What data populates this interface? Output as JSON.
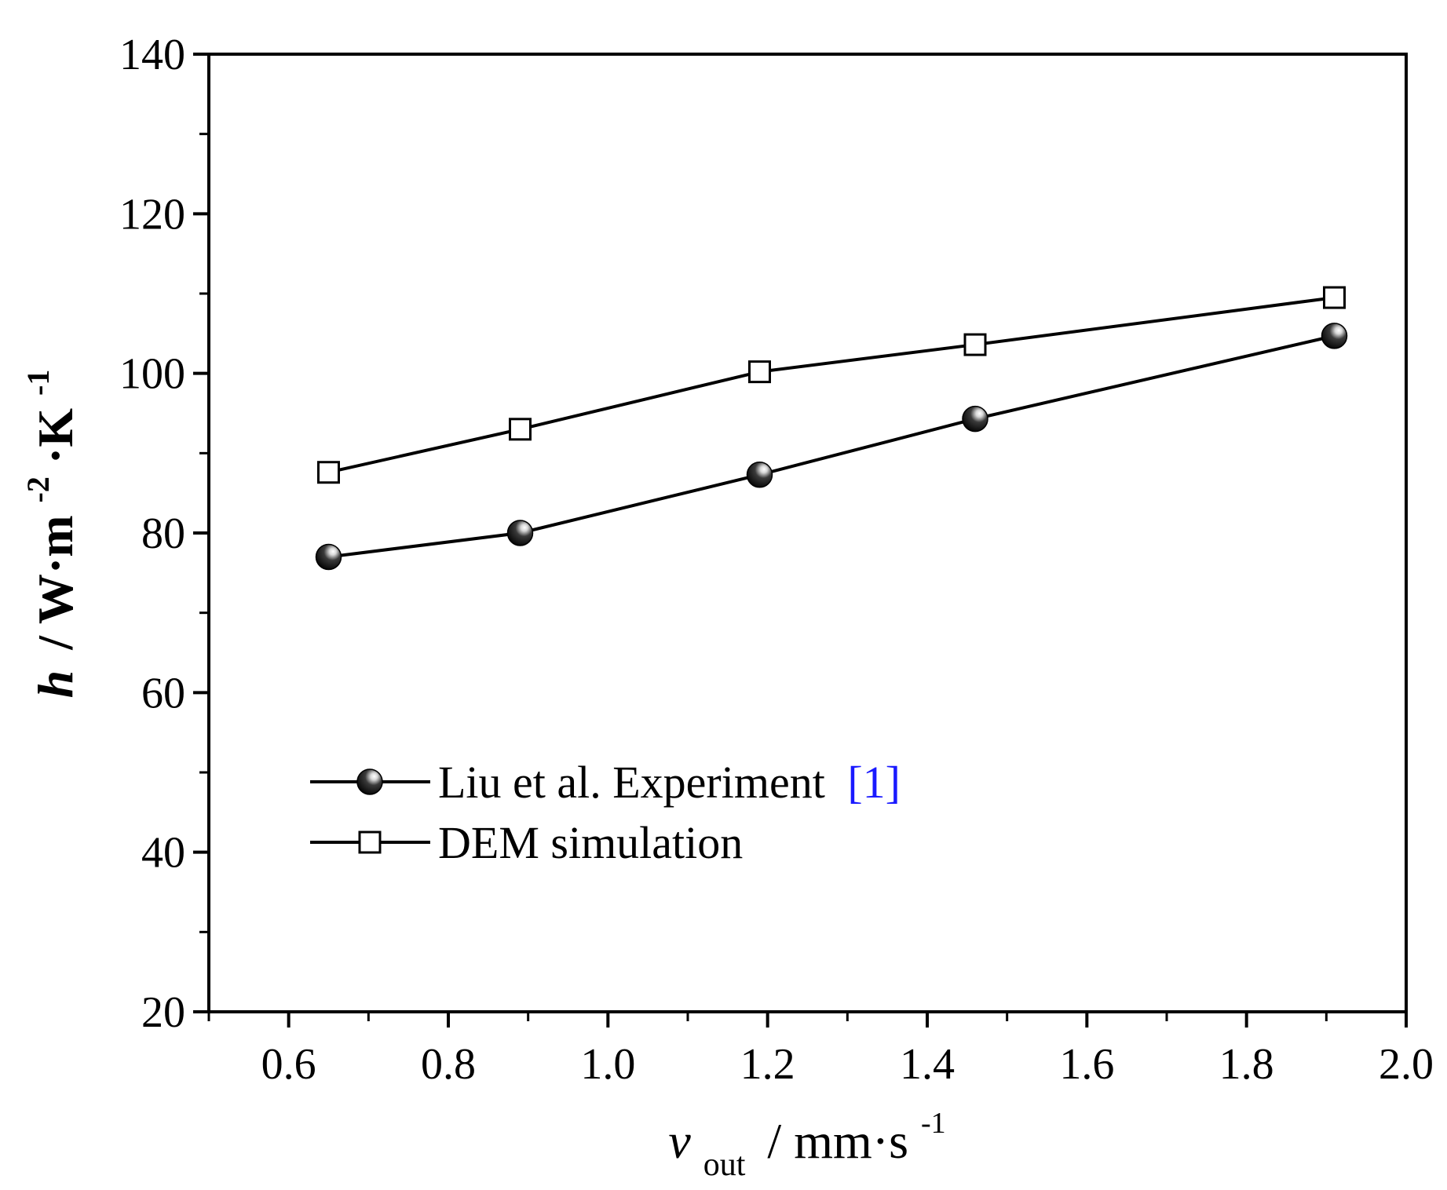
{
  "chart_data": {
    "type": "line",
    "x_range": [
      0.5,
      2.0
    ],
    "y_range": [
      20,
      140
    ],
    "x_major_ticks": [
      0.6,
      0.8,
      1.0,
      1.2,
      1.4,
      1.6,
      1.8,
      2.0
    ],
    "x_tick_labels": [
      "0.6",
      "0.8",
      "1.0",
      "1.2",
      "1.4",
      "1.6",
      "1.8",
      "2.0"
    ],
    "x_minor_ticks": [
      0.5,
      0.7,
      0.9,
      1.1,
      1.3,
      1.5,
      1.7,
      1.9
    ],
    "y_major_ticks": [
      20,
      40,
      60,
      80,
      100,
      120,
      140
    ],
    "y_tick_labels": [
      "20",
      "40",
      "60",
      "80",
      "100",
      "120",
      "140"
    ],
    "y_minor_ticks": [
      30,
      50,
      70,
      90,
      110,
      130
    ],
    "xlabel": {
      "symbol": "v",
      "subscript": "out",
      "unit_base": "/ mm·s",
      "unit_sup": "-1"
    },
    "ylabel": {
      "symbol": "h",
      "part1": "/ W·m",
      "sup1": "-2",
      "part2": "·K",
      "sup2": "-1"
    },
    "legend_position": "lower-left",
    "series": [
      {
        "name": "Liu et al. Experiment",
        "citation": "[1]",
        "marker": "filled-sphere",
        "x": [
          0.65,
          0.89,
          1.19,
          1.46,
          1.91
        ],
        "y": [
          77,
          80,
          87.3,
          94.3,
          104.7
        ]
      },
      {
        "name": "DEM simulation",
        "citation": "",
        "marker": "open-square",
        "x": [
          0.65,
          0.89,
          1.19,
          1.46,
          1.91
        ],
        "y": [
          87.6,
          93,
          100.2,
          103.6,
          109.5
        ]
      }
    ],
    "colors": {
      "axis": "#000000",
      "line": "#000000",
      "citation": "#1a1aff",
      "marker_fill_open": "#ffffff",
      "sphere_dark": "#000000",
      "sphere_light": "#ffffff"
    }
  }
}
